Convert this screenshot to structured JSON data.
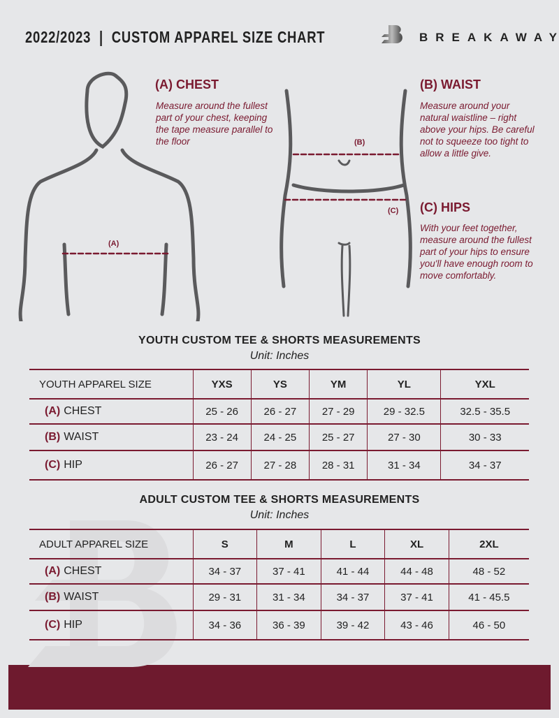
{
  "header": {
    "title": "2022/2023  |  CUSTOM APPAREL SIZE CHART",
    "brand": "BREAKAWAY"
  },
  "guide": {
    "chest": {
      "heading": "(A) CHEST",
      "text": "Measure around the fullest part of your chest, keeping the tape measure parallel to the floor",
      "marker": "(A)"
    },
    "waist": {
      "heading": "(B) WAIST",
      "text": "Measure around your natural waistline – right above your hips. Be careful not to squeeze too tight to allow a little give.",
      "marker": "(B)"
    },
    "hips": {
      "heading": "(C) HIPS",
      "text": "With your feet together, measure around the fullest part of your hips to ensure you'll have enough room to move comfortably.",
      "marker": "(C)"
    }
  },
  "youth": {
    "title": "YOUTH CUSTOM TEE & SHORTS MEASUREMENTS",
    "unit": "Unit: Inches",
    "header": [
      "YOUTH APPAREL SIZE",
      "YXS",
      "YS",
      "YM",
      "YL",
      "YXL"
    ],
    "rows": [
      {
        "key": "(A)",
        "label": "CHEST",
        "values": [
          "25 - 26",
          "26 - 27",
          "27 - 29",
          "29 - 32.5",
          "32.5 - 35.5"
        ]
      },
      {
        "key": "(B)",
        "label": "WAIST",
        "values": [
          "23 - 24",
          "24 - 25",
          "25 - 27",
          "27 - 30",
          "30 - 33"
        ]
      },
      {
        "key": "(C)",
        "label": "HIP",
        "values": [
          "26 - 27",
          "27 - 28",
          "28 - 31",
          "31 - 34",
          "34 - 37"
        ]
      }
    ]
  },
  "adult": {
    "title": "ADULT CUSTOM TEE & SHORTS MEASUREMENTS",
    "unit": "Unit: Inches",
    "header": [
      "ADULT APPAREL SIZE",
      "S",
      "M",
      "L",
      "XL",
      "2XL"
    ],
    "rows": [
      {
        "key": "(A)",
        "label": "CHEST",
        "values": [
          "34 - 37",
          "37 - 41",
          "41 - 44",
          "44 - 48",
          "48 - 52"
        ]
      },
      {
        "key": "(B)",
        "label": "WAIST",
        "values": [
          "29 - 31",
          "31 - 34",
          "34 - 37",
          "37 - 41",
          "41 - 45.5"
        ]
      },
      {
        "key": "(C)",
        "label": "HIP",
        "values": [
          "34 - 36",
          "36 - 39",
          "39 - 42",
          "43 - 46",
          "46 - 50"
        ]
      }
    ]
  },
  "colors": {
    "accent": "#7a1a30",
    "background": "#e6e7e9"
  }
}
